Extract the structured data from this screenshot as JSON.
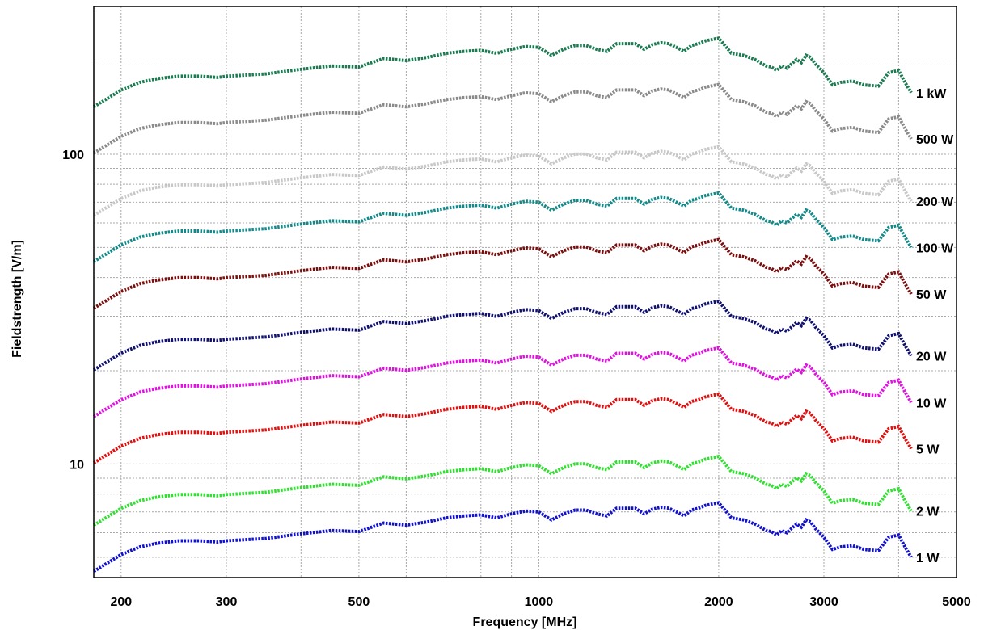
{
  "chart_data": {
    "type": "line",
    "xlabel": "Frequency [MHz]",
    "ylabel": "Fieldstrength [V/m]",
    "x_scale": "log",
    "y_scale": "log",
    "xlim": [
      180,
      5000
    ],
    "ylim": [
      4.3,
      300
    ],
    "grid": true,
    "x_ticks": [
      {
        "value": 200,
        "label": "200"
      },
      {
        "value": 300,
        "label": "300"
      },
      {
        "value": 500,
        "label": "500"
      },
      {
        "value": 1000,
        "label": "1000"
      },
      {
        "value": 2000,
        "label": "2000"
      },
      {
        "value": 3000,
        "label": "3000"
      },
      {
        "value": 5000,
        "label": "5000"
      }
    ],
    "y_ticks": [
      {
        "value": 10,
        "label": "10"
      },
      {
        "value": 100,
        "label": "100"
      }
    ],
    "x_minor_grid": [
      400,
      600,
      700,
      800,
      900,
      4000
    ],
    "y_minor_grid": [
      5,
      6,
      7,
      8,
      9,
      20,
      30,
      40,
      50,
      60,
      70,
      80,
      90,
      200
    ],
    "reference_x": [
      180,
      200,
      215,
      230,
      250,
      270,
      290,
      300,
      350,
      400,
      450,
      500,
      550,
      600,
      650,
      700,
      750,
      800,
      850,
      900,
      950,
      1000,
      1050,
      1100,
      1150,
      1200,
      1250,
      1300,
      1350,
      1400,
      1450,
      1500,
      1550,
      1600,
      1650,
      1700,
      1750,
      1800,
      1850,
      1900,
      2000,
      2100,
      2200,
      2300,
      2400,
      2450,
      2500,
      2550,
      2600,
      2650,
      2700,
      2750,
      2800,
      2850,
      2900,
      2950,
      3000,
      3100,
      3200,
      3350,
      3500,
      3700,
      3850,
      4000,
      4100,
      4200
    ],
    "reference_1w": [
      4.5,
      5.1,
      5.4,
      5.55,
      5.65,
      5.65,
      5.6,
      5.65,
      5.75,
      5.95,
      6.1,
      6.05,
      6.45,
      6.35,
      6.5,
      6.7,
      6.8,
      6.85,
      6.7,
      6.9,
      7.05,
      7.0,
      6.6,
      6.9,
      7.1,
      7.1,
      6.9,
      6.8,
      7.2,
      7.2,
      7.2,
      6.9,
      7.15,
      7.25,
      7.2,
      7.0,
      6.8,
      7.1,
      7.2,
      7.35,
      7.5,
      6.7,
      6.6,
      6.4,
      6.1,
      6.05,
      5.9,
      6.1,
      6.0,
      6.2,
      6.4,
      6.25,
      6.6,
      6.5,
      6.2,
      6.0,
      5.8,
      5.3,
      5.4,
      5.45,
      5.3,
      5.25,
      5.8,
      5.9,
      5.4,
      5.0
    ],
    "series": [
      {
        "name": "1 kW",
        "factor": 31.6,
        "color": "#1a7a50"
      },
      {
        "name": "500 W",
        "factor": 22.4,
        "color": "#8a8a8a"
      },
      {
        "name": "200 W",
        "factor": 14.1,
        "color": "#c8c8c8"
      },
      {
        "name": "100 W",
        "factor": 10.0,
        "color": "#138a8a"
      },
      {
        "name": "50 W",
        "factor": 7.07,
        "color": "#7a0e0e"
      },
      {
        "name": "20 W",
        "factor": 4.47,
        "color": "#101070"
      },
      {
        "name": "10 W",
        "factor": 3.16,
        "color": "#e010e0"
      },
      {
        "name": "5 W",
        "factor": 2.24,
        "color": "#e01010"
      },
      {
        "name": "2 W",
        "factor": 1.41,
        "color": "#30e030"
      },
      {
        "name": "1 W",
        "factor": 1.0,
        "color": "#1010d0"
      }
    ]
  }
}
